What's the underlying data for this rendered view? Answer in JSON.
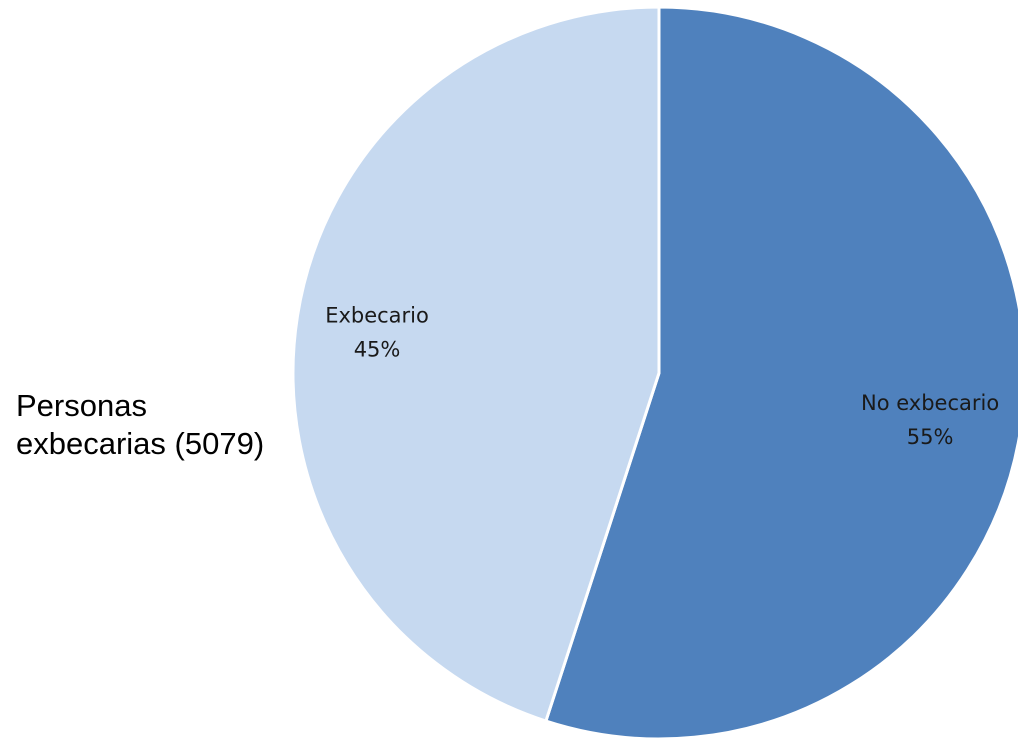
{
  "side_title": {
    "line1": "Personas",
    "line2": "exbecarias (5079)"
  },
  "chart_data": {
    "type": "pie",
    "start_angle_deg": 0,
    "direction": "clockwise",
    "slices": [
      {
        "name": "No exbecario",
        "value": 55,
        "label": "55%",
        "color": "#4f81bd"
      },
      {
        "name": "Exbecario",
        "value": 45,
        "label": "45%",
        "color": "#c6d9f0"
      }
    ],
    "legend": "none",
    "data_labels": "inside"
  }
}
